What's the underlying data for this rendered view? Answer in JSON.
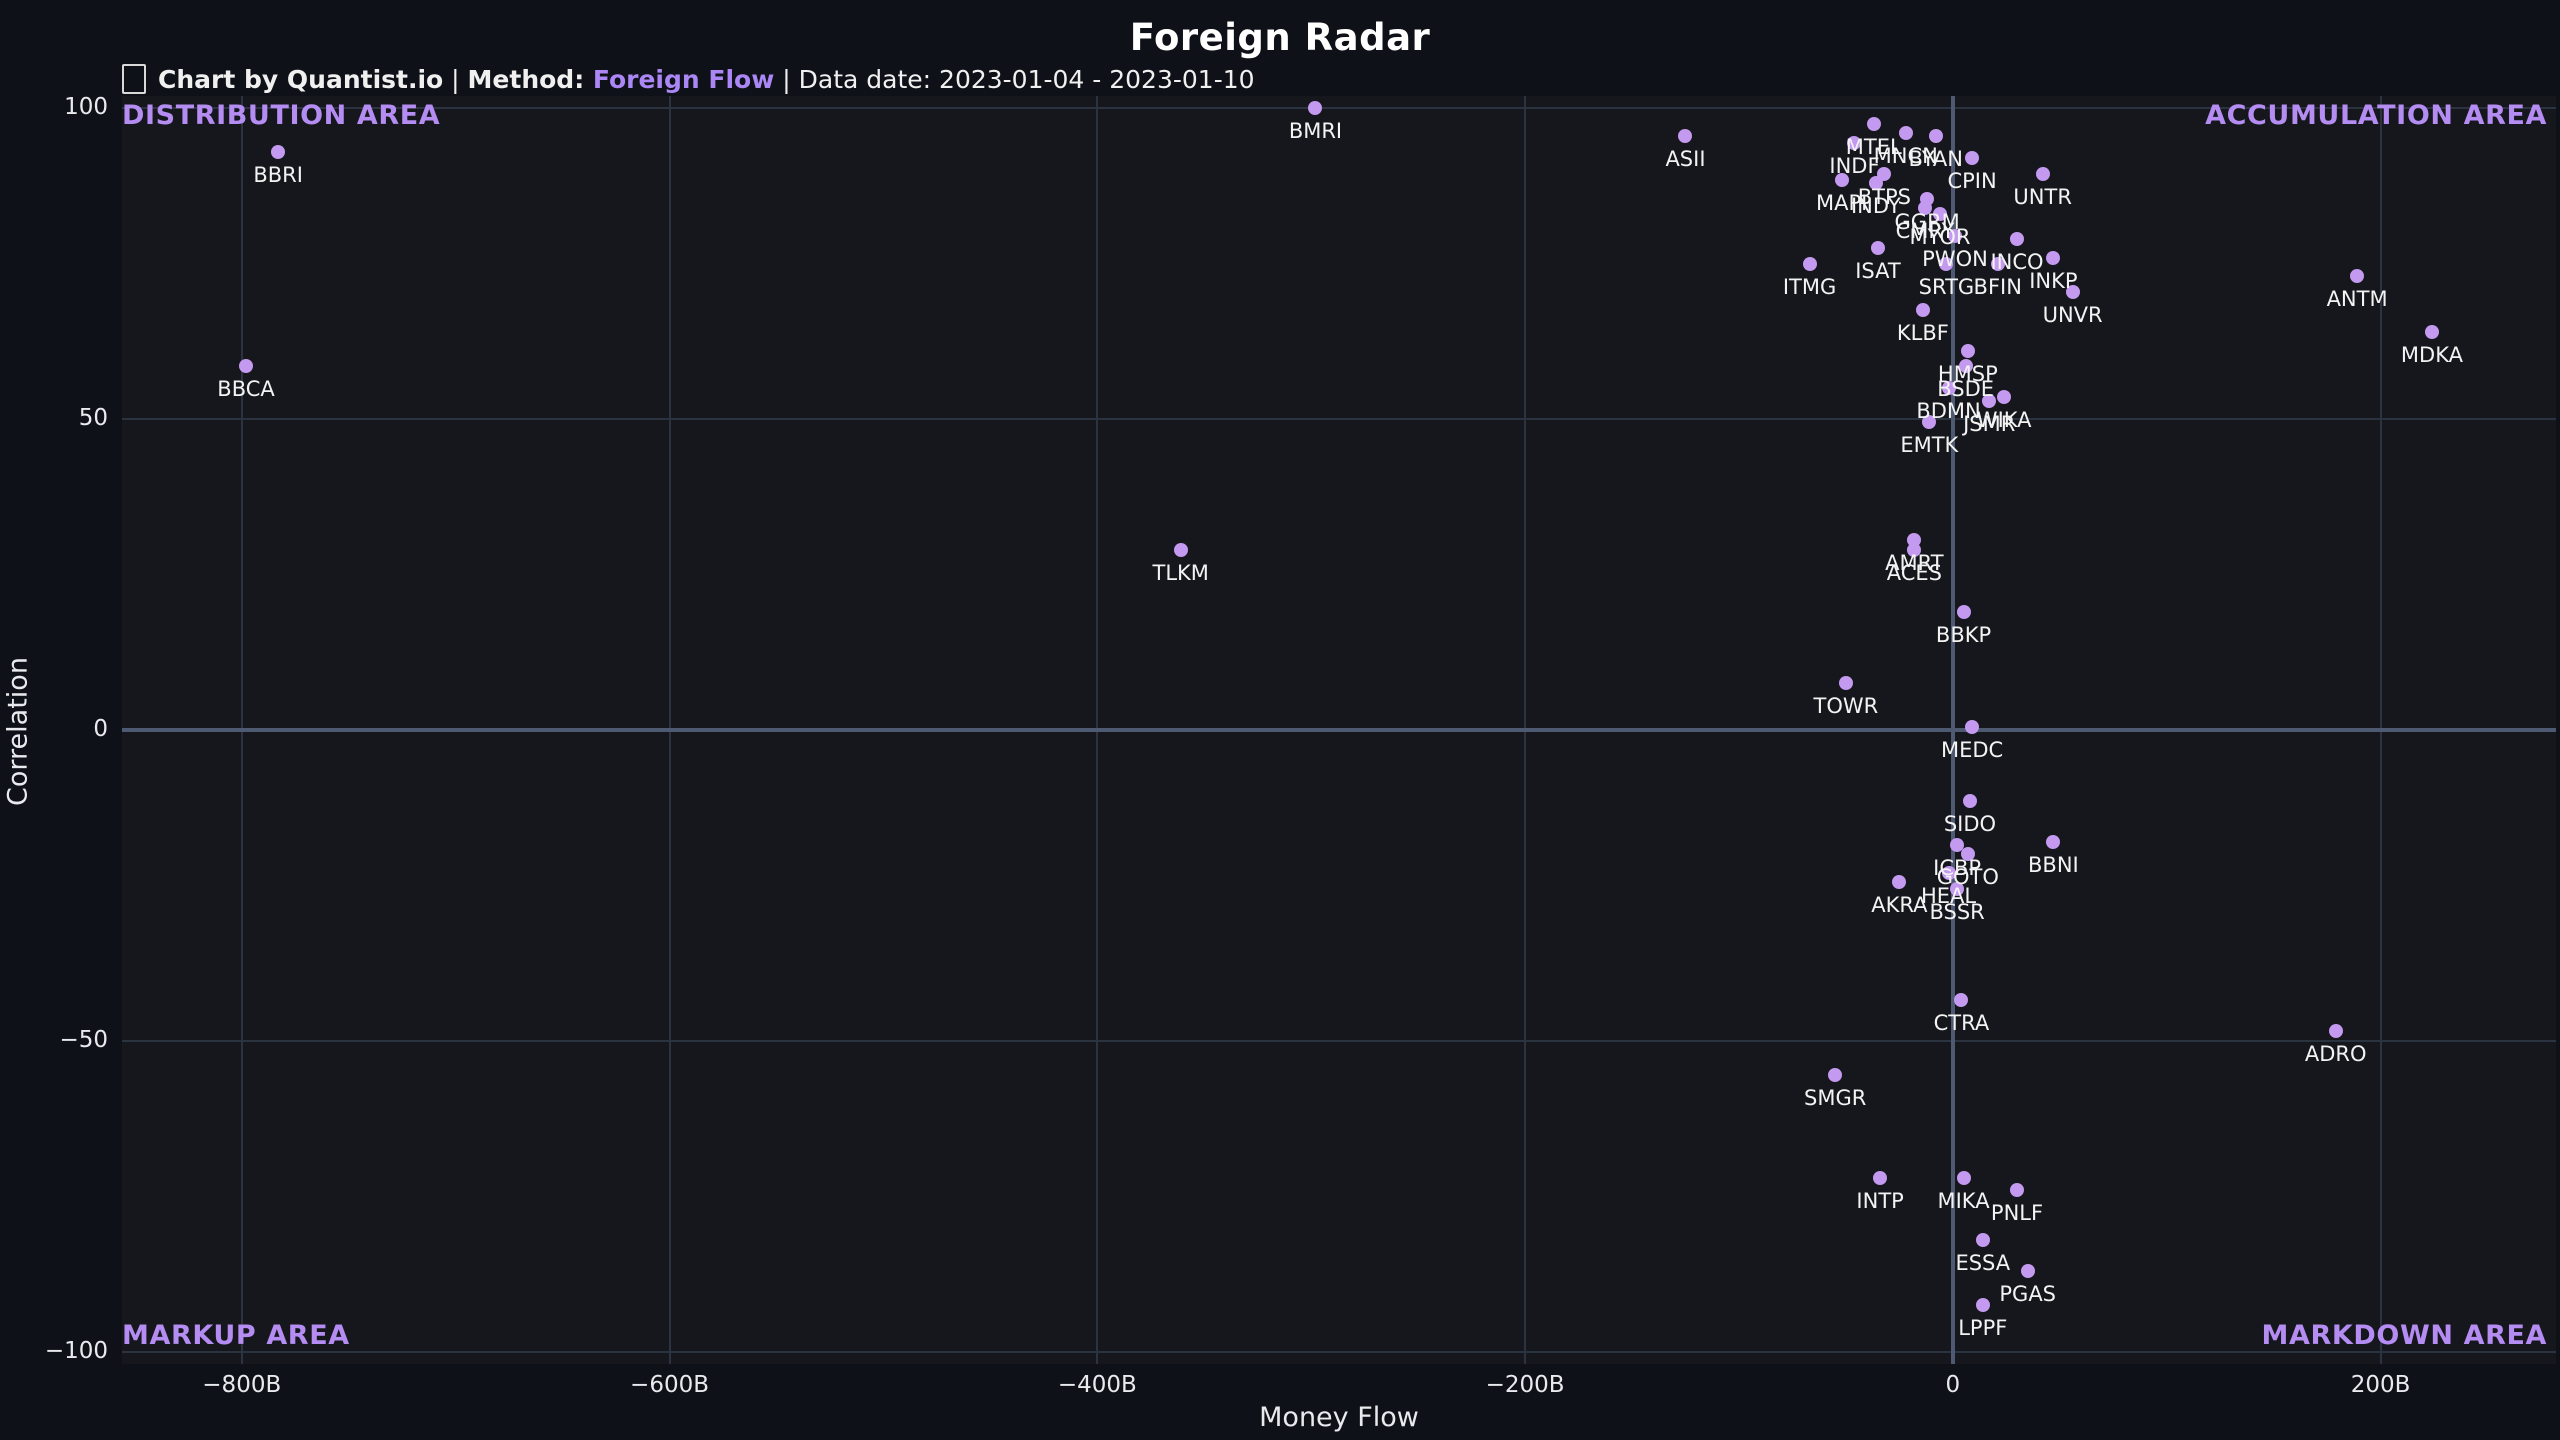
{
  "header": {
    "title": "Foreign Radar",
    "subtitle": {
      "icon": "missing-glyph-box",
      "credit": "Chart by Quantist.io",
      "sep1": " | ",
      "method_label": "Method: ",
      "method_value": "Foreign Flow",
      "sep2": " | ",
      "date": "Data date: 2023-01-04 - 2023-01-10"
    }
  },
  "quadrants": {
    "top_left": "DISTRIBUTION AREA",
    "top_right": "ACCUMULATION AREA",
    "bottom_left": "MARKUP AREA",
    "bottom_right": "MARKDOWN AREA"
  },
  "colors": {
    "background": "#0e1117",
    "plot_background": "#15171c",
    "gridline": "#2b3240",
    "zeroline": "#4e5a72",
    "marker": "#c49af0",
    "accent_purple": "#ab87f5",
    "text": "#f3f3f3"
  },
  "chart_data": {
    "type": "scatter",
    "title": "Foreign Radar",
    "xlabel": "Money Flow",
    "ylabel": "Correlation",
    "xlim": [
      -856,
      282
    ],
    "ylim": [
      -102,
      102
    ],
    "grid": true,
    "x_ticks": [
      {
        "value": -800,
        "label": "−800B"
      },
      {
        "value": -600,
        "label": "−600B"
      },
      {
        "value": -400,
        "label": "−400B"
      },
      {
        "value": -200,
        "label": "−200B"
      },
      {
        "value": 0,
        "label": "0"
      },
      {
        "value": 200,
        "label": "200B"
      }
    ],
    "y_ticks": [
      {
        "value": 100,
        "label": "100"
      },
      {
        "value": 50,
        "label": "50"
      },
      {
        "value": 0,
        "label": "0"
      },
      {
        "value": -50,
        "label": "−50"
      },
      {
        "value": -100,
        "label": "−100"
      }
    ],
    "points": [
      {
        "label": "BMRI",
        "x": -298,
        "y": 100
      },
      {
        "label": "ASII",
        "x": -125,
        "y": 95.5
      },
      {
        "label": "BBRI",
        "x": -783,
        "y": 93
      },
      {
        "label": "BBCA",
        "x": -798,
        "y": 58.5
      },
      {
        "label": "TLKM",
        "x": -361,
        "y": 29
      },
      {
        "label": "ANTM",
        "x": 189,
        "y": 73
      },
      {
        "label": "MDKA",
        "x": 224,
        "y": 64
      },
      {
        "label": "MTEL",
        "x": -37,
        "y": 97.5
      },
      {
        "label": "MNCN",
        "x": -22,
        "y": 96
      },
      {
        "label": "INDF",
        "x": -46,
        "y": 94.5
      },
      {
        "label": "BYAN",
        "x": -8,
        "y": 95.5
      },
      {
        "label": "CPIN",
        "x": 9,
        "y": 92
      },
      {
        "label": "UNTR",
        "x": 42,
        "y": 89.5
      },
      {
        "label": "MAPI",
        "x": -52,
        "y": 88.5
      },
      {
        "label": "BTPS",
        "x": -32,
        "y": 89.5
      },
      {
        "label": "INDY",
        "x": -36,
        "y": 88
      },
      {
        "label": "GGRM",
        "x": -12,
        "y": 85.5
      },
      {
        "label": "CMRY",
        "x": -13,
        "y": 84
      },
      {
        "label": "MYOR",
        "x": -6,
        "y": 83
      },
      {
        "label": "PWON",
        "x": 1,
        "y": 79.5
      },
      {
        "label": "INCO",
        "x": 30,
        "y": 79
      },
      {
        "label": "ISAT",
        "x": -35,
        "y": 77.5
      },
      {
        "label": "SRTG",
        "x": -3,
        "y": 75
      },
      {
        "label": "BFIN",
        "x": 21,
        "y": 75
      },
      {
        "label": "INKP",
        "x": 47,
        "y": 76
      },
      {
        "label": "UNVR",
        "x": 56,
        "y": 70.5
      },
      {
        "label": "ITMG",
        "x": -67,
        "y": 75
      },
      {
        "label": "KLBF",
        "x": -14,
        "y": 67.5
      },
      {
        "label": "HMSP",
        "x": 7,
        "y": 61
      },
      {
        "label": "BSDE",
        "x": 6,
        "y": 58.5
      },
      {
        "label": "BDMN",
        "x": -2,
        "y": 55
      },
      {
        "label": "JSMR",
        "x": 17,
        "y": 53
      },
      {
        "label": "WIKA",
        "x": 24,
        "y": 53.5
      },
      {
        "label": "EMTK",
        "x": -11,
        "y": 49.5
      },
      {
        "label": "AMRT",
        "x": -18,
        "y": 30.5
      },
      {
        "label": "ACES",
        "x": -18,
        "y": 29
      },
      {
        "label": "BBKP",
        "x": 5,
        "y": 19
      },
      {
        "label": "TOWR",
        "x": -50,
        "y": 7.5
      },
      {
        "label": "MEDC",
        "x": 9,
        "y": 0.5
      },
      {
        "label": "SIDO",
        "x": 8,
        "y": -11.5
      },
      {
        "label": "ICBP",
        "x": 2,
        "y": -18.5
      },
      {
        "label": "GOTO",
        "x": 7,
        "y": -20
      },
      {
        "label": "BBNI",
        "x": 47,
        "y": -18
      },
      {
        "label": "HEAL",
        "x": -2,
        "y": -23
      },
      {
        "label": "AKRA",
        "x": -25,
        "y": -24.5
      },
      {
        "label": "BSSR",
        "x": 2,
        "y": -25.5
      },
      {
        "label": "CTRA",
        "x": 4,
        "y": -43.5
      },
      {
        "label": "ADRO",
        "x": 179,
        "y": -48.5
      },
      {
        "label": "SMGR",
        "x": -55,
        "y": -55.5
      },
      {
        "label": "INTP",
        "x": -34,
        "y": -72
      },
      {
        "label": "MIKA",
        "x": 5,
        "y": -72
      },
      {
        "label": "PNLF",
        "x": 30,
        "y": -74
      },
      {
        "label": "ESSA",
        "x": 14,
        "y": -82
      },
      {
        "label": "PGAS",
        "x": 35,
        "y": -87
      },
      {
        "label": "LPPF",
        "x": 14,
        "y": -92.5
      }
    ]
  }
}
